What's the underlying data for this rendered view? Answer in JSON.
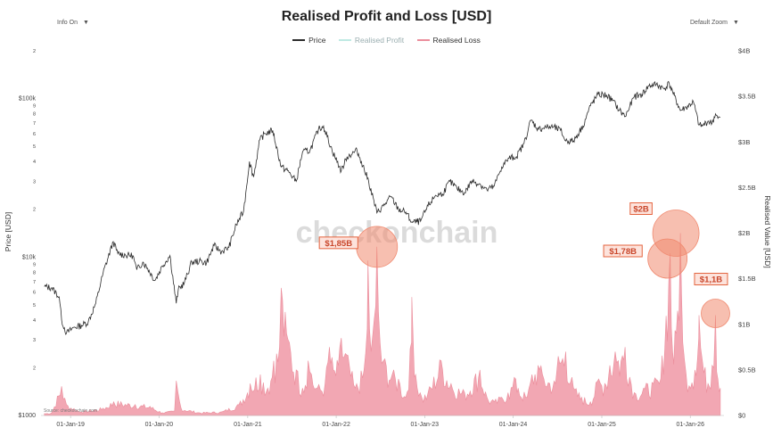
{
  "controls": {
    "info": "Info On",
    "zoom": "Default Zoom",
    "arrow": "▼"
  },
  "colors": {
    "price": "#2b2b2b",
    "profit": "#bfe9e3",
    "loss": "#eb8e9c",
    "loss_fill": "#f2a7b3",
    "bubble": "#f08a70",
    "watermark": "#cccccc"
  },
  "chart_data": {
    "type": "area",
    "title": "Realised Profit and Loss [USD]",
    "series": [
      {
        "name": "Price",
        "axis": "left",
        "scale": "log",
        "points": [
          [
            "2018-09-15",
            6500
          ],
          [
            "2018-10-15",
            6400
          ],
          [
            "2018-11-15",
            5600
          ],
          [
            "2018-11-25",
            4000
          ],
          [
            "2018-12-15",
            3300
          ],
          [
            "2019-01-15",
            3600
          ],
          [
            "2019-02-15",
            3700
          ],
          [
            "2019-03-15",
            3900
          ],
          [
            "2019-04-15",
            5100
          ],
          [
            "2019-05-15",
            7900
          ],
          [
            "2019-06-26",
            12500
          ],
          [
            "2019-07-15",
            10500
          ],
          [
            "2019-08-15",
            10300
          ],
          [
            "2019-09-15",
            10200
          ],
          [
            "2019-10-01",
            8300
          ],
          [
            "2019-10-26",
            9300
          ],
          [
            "2019-11-15",
            8500
          ],
          [
            "2019-12-15",
            7100
          ],
          [
            "2020-01-15",
            8800
          ],
          [
            "2020-02-15",
            10200
          ],
          [
            "2020-03-12",
            5100
          ],
          [
            "2020-03-20",
            6200
          ],
          [
            "2020-04-15",
            6900
          ],
          [
            "2020-05-15",
            9300
          ],
          [
            "2020-06-15",
            9400
          ],
          [
            "2020-07-15",
            9200
          ],
          [
            "2020-08-15",
            11800
          ],
          [
            "2020-09-15",
            10800
          ],
          [
            "2020-10-15",
            11500
          ],
          [
            "2020-11-15",
            16000
          ],
          [
            "2020-12-15",
            19500
          ],
          [
            "2021-01-08",
            40000
          ],
          [
            "2021-01-25",
            32000
          ],
          [
            "2021-02-20",
            55000
          ],
          [
            "2021-03-13",
            60000
          ],
          [
            "2021-04-14",
            63000
          ],
          [
            "2021-05-19",
            37000
          ],
          [
            "2021-06-15",
            35000
          ],
          [
            "2021-07-20",
            30000
          ],
          [
            "2021-08-15",
            46000
          ],
          [
            "2021-09-15",
            47000
          ],
          [
            "2021-10-20",
            64000
          ],
          [
            "2021-11-10",
            67000
          ],
          [
            "2021-12-15",
            47000
          ],
          [
            "2022-01-22",
            35000
          ],
          [
            "2022-02-15",
            43000
          ],
          [
            "2022-03-28",
            47000
          ],
          [
            "2022-04-15",
            40000
          ],
          [
            "2022-05-15",
            30000
          ],
          [
            "2022-06-18",
            19000
          ],
          [
            "2022-07-15",
            21000
          ],
          [
            "2022-08-15",
            24000
          ],
          [
            "2022-09-15",
            20000
          ],
          [
            "2022-10-15",
            19200
          ],
          [
            "2022-11-10",
            16500
          ],
          [
            "2022-12-15",
            16800
          ],
          [
            "2023-01-15",
            21000
          ],
          [
            "2023-02-15",
            24500
          ],
          [
            "2023-03-15",
            25000
          ],
          [
            "2023-04-15",
            30000
          ],
          [
            "2023-05-15",
            27000
          ],
          [
            "2023-06-15",
            25500
          ],
          [
            "2023-07-15",
            30200
          ],
          [
            "2023-08-15",
            29000
          ],
          [
            "2023-09-15",
            26500
          ],
          [
            "2023-10-15",
            28000
          ],
          [
            "2023-11-15",
            37000
          ],
          [
            "2023-12-15",
            42000
          ],
          [
            "2024-01-15",
            43000
          ],
          [
            "2024-02-15",
            52000
          ],
          [
            "2024-03-14",
            73000
          ],
          [
            "2024-04-15",
            64000
          ],
          [
            "2024-05-15",
            66000
          ],
          [
            "2024-06-15",
            66000
          ],
          [
            "2024-07-15",
            63000
          ],
          [
            "2024-08-05",
            54000
          ],
          [
            "2024-09-06",
            54000
          ],
          [
            "2024-10-15",
            67000
          ],
          [
            "2024-11-15",
            90000
          ],
          [
            "2024-12-17",
            106000
          ],
          [
            "2025-01-20",
            105000
          ],
          [
            "2025-02-15",
            97000
          ],
          [
            "2025-03-15",
            84000
          ],
          [
            "2025-04-08",
            77000
          ],
          [
            "2025-05-15",
            103000
          ],
          [
            "2025-06-15",
            106000
          ],
          [
            "2025-07-14",
            120000
          ],
          [
            "2025-08-14",
            123000
          ],
          [
            "2025-09-15",
            115000
          ],
          [
            "2025-10-06",
            125000
          ],
          [
            "2025-10-20",
            110000
          ],
          [
            "2025-11-21",
            84000
          ],
          [
            "2025-12-15",
            88000
          ],
          [
            "2026-01-14",
            95000
          ],
          [
            "2026-02-06",
            68000
          ],
          [
            "2026-02-20",
            67000
          ],
          [
            "2026-03-15",
            72000
          ],
          [
            "2026-04-01",
            70000
          ],
          [
            "2026-04-15",
            80000
          ],
          [
            "2026-04-25",
            75000
          ],
          [
            "2026-05-05",
            76000
          ]
        ]
      },
      {
        "name": "Realised Profit",
        "axis": "right",
        "points": []
      },
      {
        "name": "Realised Loss",
        "axis": "right",
        "points": [
          [
            "2018-09-15",
            20000000.0
          ],
          [
            "2018-10-15",
            30000000.0
          ],
          [
            "2018-11-25",
            320000000.0
          ],
          [
            "2018-12-15",
            120000000.0
          ],
          [
            "2019-02-15",
            40000000.0
          ],
          [
            "2019-05-15",
            80000000.0
          ],
          [
            "2019-06-28",
            150000000.0
          ],
          [
            "2019-09-25",
            120000000.0
          ],
          [
            "2019-11-25",
            100000000.0
          ],
          [
            "2020-01-15",
            30000000.0
          ],
          [
            "2020-03-05",
            50000000.0
          ],
          [
            "2020-03-12",
            380000000.0
          ],
          [
            "2020-04-01",
            80000000.0
          ],
          [
            "2020-06-15",
            30000000.0
          ],
          [
            "2020-09-15",
            40000000.0
          ],
          [
            "2020-11-26",
            120000000.0
          ],
          [
            "2021-01-11",
            350000000.0
          ],
          [
            "2021-02-22",
            450000000.0
          ],
          [
            "2021-03-25",
            300000000.0
          ],
          [
            "2021-04-18",
            600000000.0
          ],
          [
            "2021-05-12",
            750000000.0
          ],
          [
            "2021-05-19",
            1400000000.0
          ],
          [
            "2021-06-10",
            900000000.0
          ],
          [
            "2021-06-22",
            800000000.0
          ],
          [
            "2021-07-20",
            500000000.0
          ],
          [
            "2021-08-15",
            300000000.0
          ],
          [
            "2021-09-07",
            600000000.0
          ],
          [
            "2021-09-21",
            450000000.0
          ],
          [
            "2021-10-15",
            300000000.0
          ],
          [
            "2021-11-16",
            350000000.0
          ],
          [
            "2021-12-04",
            750000000.0
          ],
          [
            "2021-12-20",
            500000000.0
          ],
          [
            "2022-01-10",
            550000000.0
          ],
          [
            "2022-01-22",
            850000000.0
          ],
          [
            "2022-02-24",
            550000000.0
          ],
          [
            "2022-03-20",
            300000000.0
          ],
          [
            "2022-04-26",
            500000000.0
          ],
          [
            "2022-05-09",
            950000000.0
          ],
          [
            "2022-05-12",
            1700000000.0
          ],
          [
            "2022-05-25",
            700000000.0
          ],
          [
            "2022-06-13",
            1200000000.0
          ],
          [
            "2022-06-18",
            1850000000.0
          ],
          [
            "2022-07-01",
            800000000.0
          ],
          [
            "2022-07-15",
            600000000.0
          ],
          [
            "2022-08-20",
            450000000.0
          ],
          [
            "2022-09-15",
            400000000.0
          ],
          [
            "2022-10-15",
            200000000.0
          ],
          [
            "2022-11-08",
            800000000.0
          ],
          [
            "2022-11-09",
            1300000000.0
          ],
          [
            "2022-11-25",
            450000000.0
          ],
          [
            "2022-12-20",
            200000000.0
          ],
          [
            "2023-01-15",
            250000000.0
          ],
          [
            "2023-03-10",
            600000000.0
          ],
          [
            "2023-04-20",
            350000000.0
          ],
          [
            "2023-06-15",
            250000000.0
          ],
          [
            "2023-08-17",
            500000000.0
          ],
          [
            "2023-09-15",
            200000000.0
          ],
          [
            "2023-10-15",
            150000000.0
          ],
          [
            "2023-11-15",
            200000000.0
          ],
          [
            "2023-12-11",
            250000000.0
          ],
          [
            "2024-01-12",
            400000000.0
          ],
          [
            "2024-01-22",
            300000000.0
          ],
          [
            "2024-02-28",
            200000000.0
          ],
          [
            "2024-03-19",
            450000000.0
          ],
          [
            "2024-04-13",
            550000000.0
          ],
          [
            "2024-05-01",
            450000000.0
          ],
          [
            "2024-06-24",
            350000000.0
          ],
          [
            "2024-07-05",
            650000000.0
          ],
          [
            "2024-08-05",
            700000000.0
          ],
          [
            "2024-09-06",
            300000000.0
          ],
          [
            "2024-10-10",
            200000000.0
          ],
          [
            "2024-11-15",
            150000000.0
          ],
          [
            "2024-12-19",
            400000000.0
          ],
          [
            "2025-01-13",
            350000000.0
          ],
          [
            "2025-02-03",
            550000000.0
          ],
          [
            "2025-02-25",
            700000000.0
          ],
          [
            "2025-03-10",
            600000000.0
          ],
          [
            "2025-04-07",
            750000000.0
          ],
          [
            "2025-05-15",
            250000000.0
          ],
          [
            "2025-06-22",
            300000000.0
          ],
          [
            "2025-08-02",
            350000000.0
          ],
          [
            "2025-09-01",
            400000000.0
          ],
          [
            "2025-10-10",
            1780000000.0
          ],
          [
            "2025-10-20",
            700000000.0
          ],
          [
            "2025-11-04",
            900000000.0
          ],
          [
            "2025-11-21",
            2000000000.0
          ],
          [
            "2025-12-01",
            800000000.0
          ],
          [
            "2025-12-15",
            450000000.0
          ],
          [
            "2026-01-20",
            500000000.0
          ],
          [
            "2026-02-05",
            850000000.0
          ],
          [
            "2026-02-06",
            1100000000.0
          ],
          [
            "2026-02-20",
            600000000.0
          ],
          [
            "2026-03-15",
            350000000.0
          ],
          [
            "2026-04-01",
            550000000.0
          ],
          [
            "2026-04-15",
            1100000000.0
          ],
          [
            "2026-04-25",
            400000000.0
          ],
          [
            "2026-05-05",
            300000000.0
          ]
        ]
      }
    ],
    "y_left": {
      "label": "Price [USD]",
      "scale": "log",
      "range": [
        1000,
        200000
      ],
      "ticks": [
        {
          "v": 1000,
          "t": "$1000"
        },
        {
          "v": 2000,
          "t": "2"
        },
        {
          "v": 3000,
          "t": "3"
        },
        {
          "v": 4000,
          "t": "4"
        },
        {
          "v": 5000,
          "t": "5"
        },
        {
          "v": 6000,
          "t": "6"
        },
        {
          "v": 7000,
          "t": "7"
        },
        {
          "v": 8000,
          "t": "8"
        },
        {
          "v": 9000,
          "t": "9"
        },
        {
          "v": 10000,
          "t": "$10k"
        },
        {
          "v": 20000,
          "t": "2"
        },
        {
          "v": 30000,
          "t": "3"
        },
        {
          "v": 40000,
          "t": "4"
        },
        {
          "v": 50000,
          "t": "5"
        },
        {
          "v": 60000,
          "t": "6"
        },
        {
          "v": 70000,
          "t": "7"
        },
        {
          "v": 80000,
          "t": "8"
        },
        {
          "v": 90000,
          "t": "9"
        },
        {
          "v": 100000,
          "t": "$100k"
        },
        {
          "v": 200000,
          "t": "2"
        }
      ]
    },
    "y_right": {
      "label": "Realised Value [USD]",
      "range": [
        0,
        4000000000
      ],
      "ticks": [
        {
          "v": 0,
          "t": "$0"
        },
        {
          "v": 500000000,
          "t": "$0.5B"
        },
        {
          "v": 1000000000,
          "t": "$1B"
        },
        {
          "v": 1500000000,
          "t": "$1.5B"
        },
        {
          "v": 2000000000,
          "t": "$2B"
        },
        {
          "v": 2500000000,
          "t": "$2.5B"
        },
        {
          "v": 3000000000,
          "t": "$3B"
        },
        {
          "v": 3500000000,
          "t": "$3.5B"
        },
        {
          "v": 4000000000,
          "t": "$4B"
        }
      ]
    },
    "x": {
      "range": [
        "2018-09-01",
        "2026-05-20"
      ],
      "ticks": [
        {
          "d": "2019-01-01",
          "t": "01-Jan-19"
        },
        {
          "d": "2020-01-01",
          "t": "01-Jan-20"
        },
        {
          "d": "2021-01-01",
          "t": "01-Jan-21"
        },
        {
          "d": "2022-01-01",
          "t": "01-Jan-22"
        },
        {
          "d": "2023-01-01",
          "t": "01-Jan-23"
        },
        {
          "d": "2024-01-01",
          "t": "01-Jan-24"
        },
        {
          "d": "2025-01-01",
          "t": "01-Jan-25"
        },
        {
          "d": "2026-01-01",
          "t": "01-Jan-26"
        }
      ]
    },
    "annotations": [
      {
        "text": "$1,85B",
        "x": "2022-06-18",
        "y": 1850000000
      },
      {
        "text": "$1,78B",
        "x": "2025-10-10",
        "y": 1780000000
      },
      {
        "text": "$2B",
        "x": "2025-11-21",
        "y": 2000000000
      },
      {
        "text": "$1,1B",
        "x": "2026-04-15",
        "y": 1100000000
      }
    ],
    "watermark": "checkonchain",
    "source": "Source: checkonchain.com",
    "grid": false,
    "legend_position": "top-center"
  }
}
